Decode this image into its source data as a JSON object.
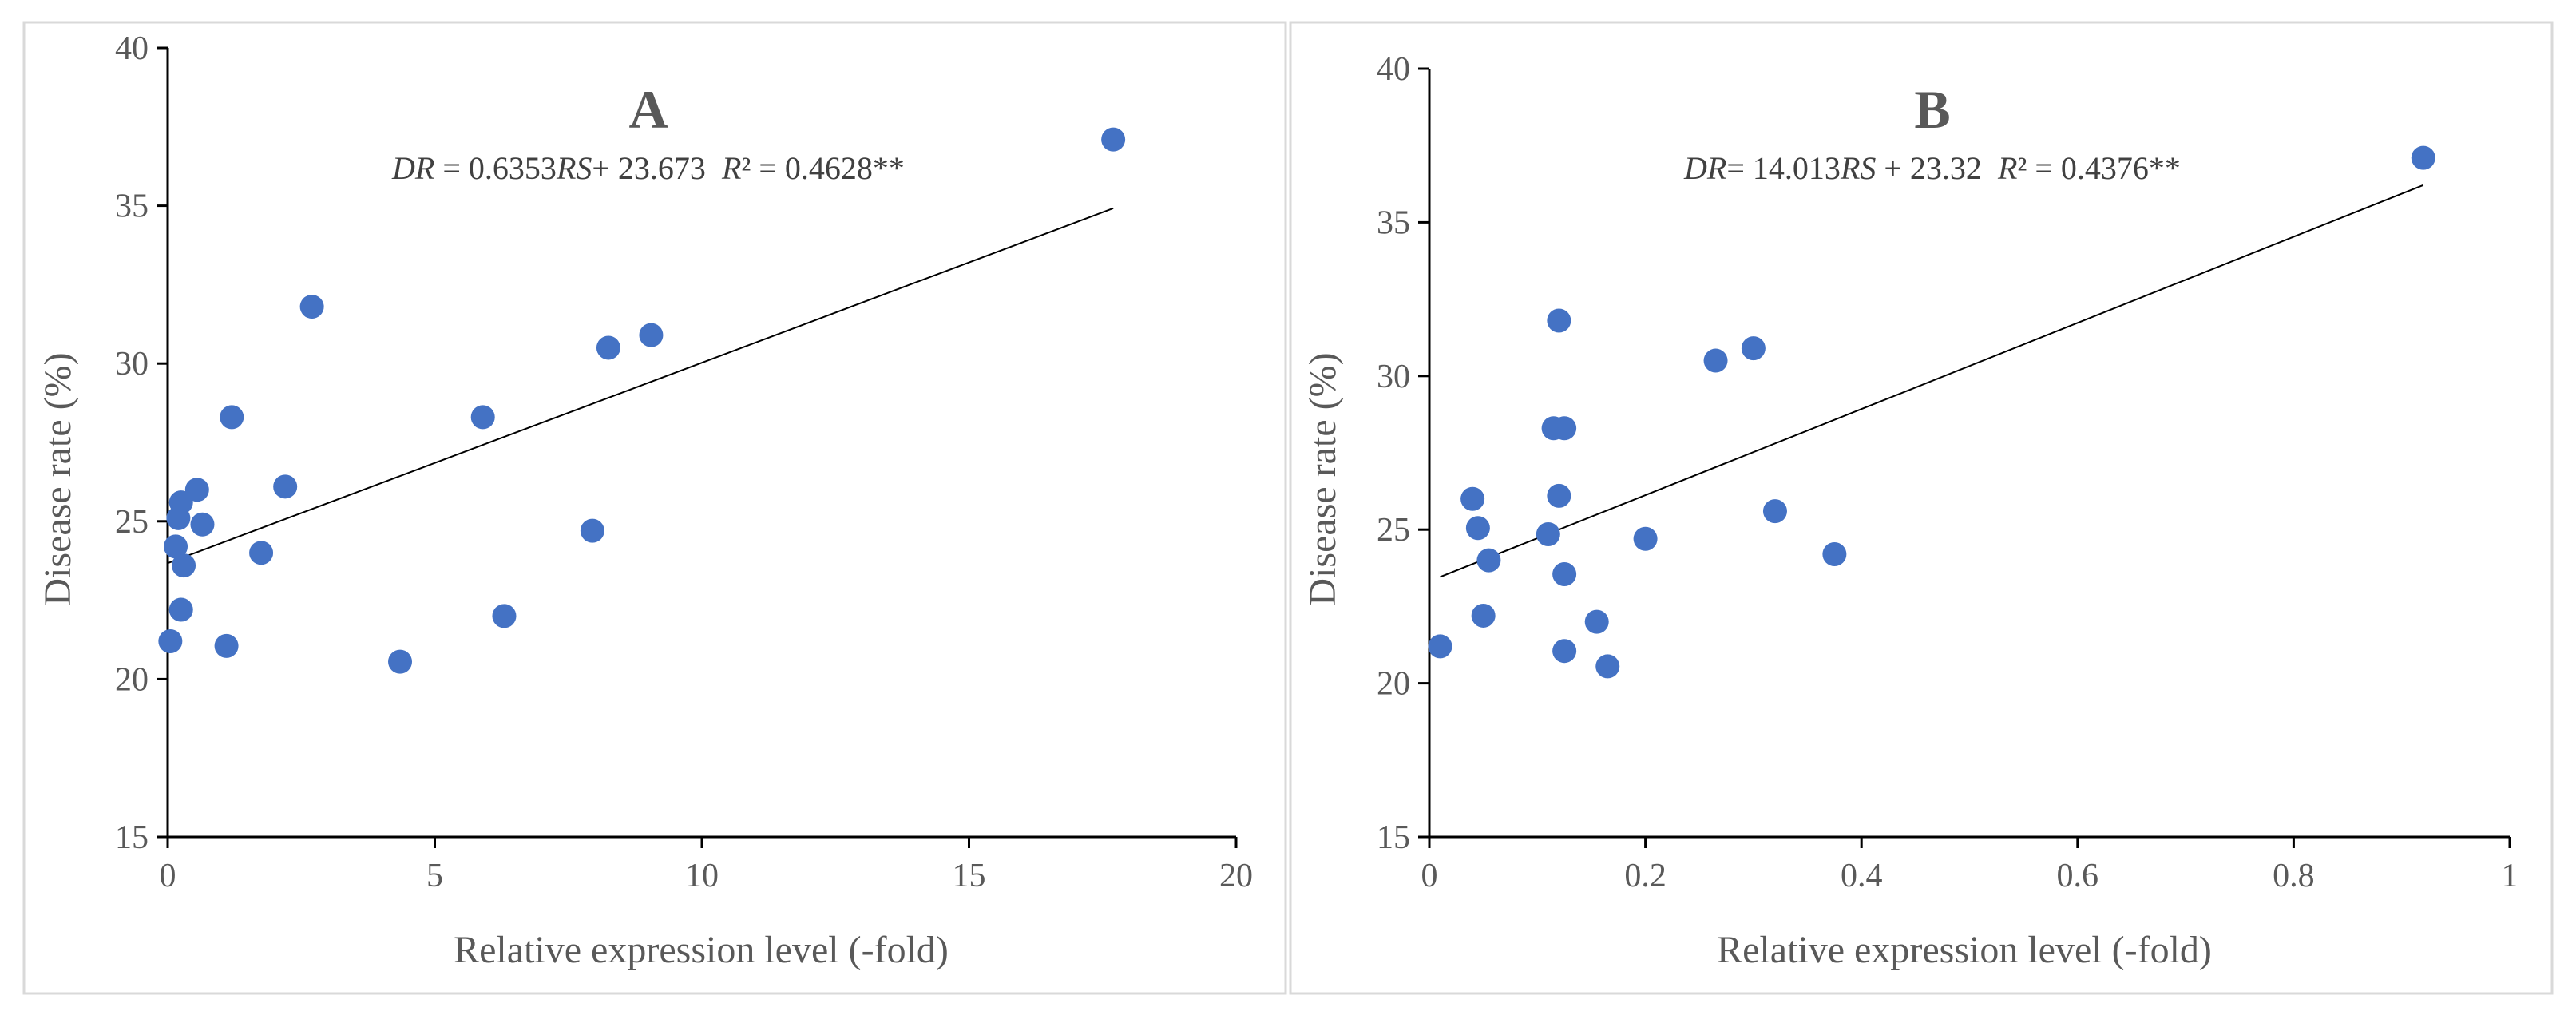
{
  "colors": {
    "point": "#4472C4",
    "trendline": "#000000",
    "axis": "#000000",
    "text": "#595959",
    "panel_border": "#D9D9D9"
  },
  "chart_data": [
    {
      "type": "scatter",
      "title": "A",
      "equation": {
        "dr": "DR",
        "mid1": " = 0.6353",
        "rs": "RS",
        "mid2": "+ 23.673  ",
        "r2": "R",
        "tail": "² = 0.4628**"
      },
      "xlabel": "Relative expression level (-fold)",
      "ylabel": "Disease rate (%)",
      "xlim": [
        0,
        20
      ],
      "ylim": [
        15,
        40
      ],
      "xticks": [
        "0",
        "5",
        "10",
        "15",
        "20"
      ],
      "yticks": [
        "15",
        "20",
        "25",
        "30",
        "35",
        "40"
      ],
      "trendline": {
        "slope": 0.6353,
        "intercept": 23.673,
        "x_start": 0,
        "x_end": 17.7
      },
      "points": [
        {
          "x": 17.7,
          "y": 37.1
        },
        {
          "x": 2.7,
          "y": 31.8
        },
        {
          "x": 9.05,
          "y": 30.9
        },
        {
          "x": 8.25,
          "y": 30.5
        },
        {
          "x": 1.2,
          "y": 28.3
        },
        {
          "x": 5.9,
          "y": 28.3
        },
        {
          "x": 2.2,
          "y": 26.1
        },
        {
          "x": 0.55,
          "y": 26.0
        },
        {
          "x": 0.25,
          "y": 25.6
        },
        {
          "x": 0.2,
          "y": 25.1
        },
        {
          "x": 0.65,
          "y": 24.9
        },
        {
          "x": 7.95,
          "y": 24.7
        },
        {
          "x": 0.15,
          "y": 24.2
        },
        {
          "x": 1.75,
          "y": 24.0
        },
        {
          "x": 0.3,
          "y": 23.6
        },
        {
          "x": 0.25,
          "y": 22.2
        },
        {
          "x": 6.3,
          "y": 22.0
        },
        {
          "x": 0.05,
          "y": 21.2
        },
        {
          "x": 1.1,
          "y": 21.05
        },
        {
          "x": 4.35,
          "y": 20.55
        }
      ]
    },
    {
      "type": "scatter",
      "title": "B",
      "equation": {
        "dr": "DR",
        "mid1": "= 14.013",
        "rs": "RS",
        "mid2": " + 23.32  ",
        "r2": "R",
        "tail": "² = 0.4376**"
      },
      "xlabel": "Relative expression level (-fold)",
      "ylabel": "Disease rate (%)",
      "xlim": [
        0,
        1
      ],
      "ylim": [
        15,
        40
      ],
      "xticks": [
        "0",
        "0.2",
        "0.4",
        "0.6",
        "0.8",
        "1"
      ],
      "yticks": [
        "15",
        "20",
        "25",
        "30",
        "35",
        "40"
      ],
      "trendline": {
        "slope": 14.013,
        "intercept": 23.32,
        "x_start": 0.01,
        "x_end": 0.92
      },
      "points": [
        {
          "x": 0.92,
          "y": 37.1
        },
        {
          "x": 0.12,
          "y": 31.8
        },
        {
          "x": 0.3,
          "y": 30.9
        },
        {
          "x": 0.265,
          "y": 30.5
        },
        {
          "x": 0.115,
          "y": 28.3
        },
        {
          "x": 0.125,
          "y": 28.3
        },
        {
          "x": 0.12,
          "y": 26.1
        },
        {
          "x": 0.04,
          "y": 26.0
        },
        {
          "x": 0.32,
          "y": 25.6
        },
        {
          "x": 0.045,
          "y": 25.05
        },
        {
          "x": 0.11,
          "y": 24.85
        },
        {
          "x": 0.2,
          "y": 24.7
        },
        {
          "x": 0.375,
          "y": 24.2
        },
        {
          "x": 0.055,
          "y": 24.0
        },
        {
          "x": 0.125,
          "y": 23.55
        },
        {
          "x": 0.05,
          "y": 22.2
        },
        {
          "x": 0.155,
          "y": 22.0
        },
        {
          "x": 0.01,
          "y": 21.2
        },
        {
          "x": 0.125,
          "y": 21.05
        },
        {
          "x": 0.165,
          "y": 20.55
        }
      ]
    }
  ]
}
